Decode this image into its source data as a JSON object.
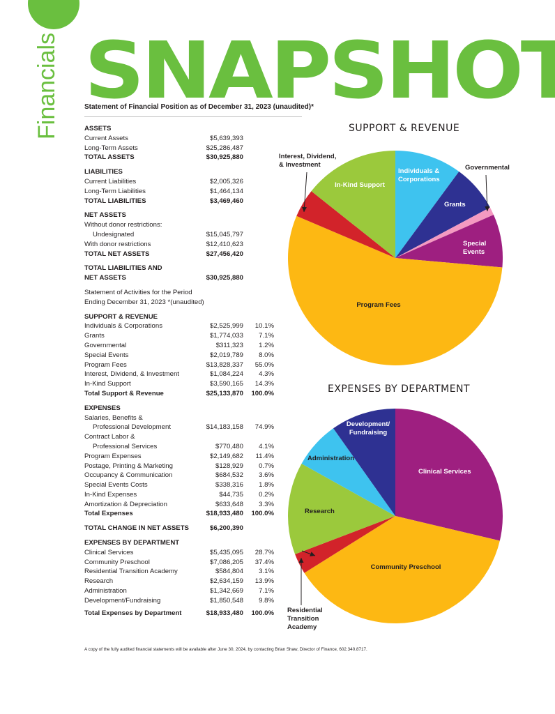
{
  "page": {
    "side_title": "Financials",
    "title": "SNAPSHOT",
    "subtitle": "Statement of Financial Position as of December 31, 2023 (unaudited)*",
    "footnote": "A copy of the fully audited financial statements will be available after June 30, 2024, by contacting Brian Shaw, Director of Finance, 602.340.8717."
  },
  "statement": {
    "assets": {
      "heading": "ASSETS",
      "rows": [
        {
          "label": "Current Assets",
          "value": "$5,639,393"
        },
        {
          "label": "Long-Term Assets",
          "value": "$25,286,487"
        }
      ],
      "total": {
        "label": "TOTAL ASSETS",
        "value": "$30,925,880"
      }
    },
    "liabilities": {
      "heading": "LIABILITIES",
      "rows": [
        {
          "label": "Current Liabilities",
          "value": "$2,005,326"
        },
        {
          "label": "Long-Term Liabilities",
          "value": "$1,464,134"
        }
      ],
      "total": {
        "label": "TOTAL LIABILITIES",
        "value": "$3,469,460"
      }
    },
    "net_assets": {
      "heading": "NET ASSETS",
      "without_label": "Without donor restrictions:",
      "undesignated_label": "Undesignated",
      "undesignated_value": "$15,045,797",
      "with_label": "With donor restrictions",
      "with_value": "$12,410,623",
      "total": {
        "label": "TOTAL NET ASSETS",
        "value": "$27,456,420"
      }
    },
    "total_liab_net": {
      "line1": "TOTAL LIABILITIES AND",
      "line2": "NET ASSETS",
      "value": "$30,925,880"
    },
    "activities": {
      "line1": "Statement of Activities for the Period",
      "line2": "Ending December 31, 2023 *(unaudited)"
    },
    "support": {
      "heading": "SUPPORT & REVENUE",
      "rows": [
        {
          "label": "Individuals & Corporations",
          "value": "$2,525,999",
          "pct": "10.1%"
        },
        {
          "label": "Grants",
          "value": "$1,774,033",
          "pct": "7.1%"
        },
        {
          "label": "Governmental",
          "value": "$311,323",
          "pct": "1.2%"
        },
        {
          "label": "Special Events",
          "value": "$2,019,789",
          "pct": "8.0%"
        },
        {
          "label": "Program Fees",
          "value": "$13,828,337",
          "pct": "55.0%"
        },
        {
          "label": "Interest, Dividend, & Investment",
          "value": "$1,084,224",
          "pct": "4.3%"
        },
        {
          "label": "In-Kind Support",
          "value": "$3,590,165",
          "pct": "14.3%"
        }
      ],
      "total": {
        "label": "Total Support & Revenue",
        "value": "$25,133,870",
        "pct": "100.0%"
      }
    },
    "expenses": {
      "heading": "EXPENSES",
      "salaries_l1": "Salaries, Benefits &",
      "salaries_l2": "Professional Development",
      "salaries_value": "$14,183,158",
      "salaries_pct": "74.9%",
      "contract_l1": "Contract Labor &",
      "contract_l2": "Professional Services",
      "contract_value": "$770,480",
      "contract_pct": "4.1%",
      "rows": [
        {
          "label": "Program Expenses",
          "value": "$2,149,682",
          "pct": "11.4%"
        },
        {
          "label": "Postage, Printing & Marketing",
          "value": "$128,929",
          "pct": "0.7%"
        },
        {
          "label": "Occupancy & Communication",
          "value": "$684,532",
          "pct": "3.6%"
        },
        {
          "label": "Special Events Costs",
          "value": "$338,316",
          "pct": "1.8%"
        },
        {
          "label": "In-Kind Expenses",
          "value": "$44,735",
          "pct": "0.2%"
        },
        {
          "label": "Amortization & Depreciation",
          "value": "$633,648",
          "pct": "3.3%"
        }
      ],
      "total": {
        "label": "Total Expenses",
        "value": "$18,933,480",
        "pct": "100.0%"
      }
    },
    "change": {
      "label": "TOTAL CHANGE IN NET ASSETS",
      "value": "$6,200,390"
    },
    "departments": {
      "heading": "EXPENSES BY DEPARTMENT",
      "rows": [
        {
          "label": "Clinical Services",
          "value": "$5,435,095",
          "pct": "28.7%"
        },
        {
          "label": "Community Preschool",
          "value": "$7,086,205",
          "pct": "37.4%"
        },
        {
          "label": "Residential Transition Academy",
          "value": "$584,804",
          "pct": "3.1%"
        },
        {
          "label": "Research",
          "value": "$2,634,159",
          "pct": "13.9%"
        },
        {
          "label": "Administration",
          "value": "$1,342,669",
          "pct": "7.1%"
        },
        {
          "label": "Development/Fundraising",
          "value": "$1,850,548",
          "pct": "9.8%"
        }
      ],
      "total": {
        "label": "Total Expenses by Department",
        "value": "$18,933,480",
        "pct": "100.0%"
      }
    }
  },
  "chart_data": [
    {
      "type": "pie",
      "title": "SUPPORT & REVENUE",
      "slices": [
        {
          "name": "Individuals & Corporations",
          "value": 10.1,
          "color": "#3ec3ef",
          "label_lines": [
            "Individuals &",
            "Corporations"
          ]
        },
        {
          "name": "Grants",
          "value": 7.1,
          "color": "#2e3192",
          "label_lines": [
            "Grants"
          ]
        },
        {
          "name": "Governmental",
          "value": 1.2,
          "color": "#f49ac1",
          "label_lines": [
            "Governmental"
          ]
        },
        {
          "name": "Special Events",
          "value": 8.0,
          "color": "#9e1f80",
          "label_lines": [
            "Special",
            "Events"
          ]
        },
        {
          "name": "Program Fees",
          "value": 55.0,
          "color": "#fdb813",
          "label_lines": [
            "Program Fees"
          ]
        },
        {
          "name": "Interest, Dividend, & Investment",
          "value": 4.3,
          "color": "#d2232a",
          "label_lines": [
            "Interest, Dividend,",
            "& Investment"
          ]
        },
        {
          "name": "In-Kind Support",
          "value": 14.3,
          "color": "#9bc93c",
          "label_lines": [
            "In-Kind Support"
          ]
        }
      ]
    },
    {
      "type": "pie",
      "title": "EXPENSES BY DEPARTMENT",
      "slices": [
        {
          "name": "Clinical Services",
          "value": 28.7,
          "color": "#9e1f80",
          "label_lines": [
            "Clinical Services"
          ]
        },
        {
          "name": "Community Preschool",
          "value": 37.4,
          "color": "#fdb813",
          "label_lines": [
            "Community Preschool"
          ]
        },
        {
          "name": "Residential Transition Academy",
          "value": 3.1,
          "color": "#d2232a",
          "label_lines": [
            "Residential",
            "Transition",
            "Academy"
          ]
        },
        {
          "name": "Research",
          "value": 13.9,
          "color": "#9bc93c",
          "label_lines": [
            "Research"
          ]
        },
        {
          "name": "Administration",
          "value": 7.1,
          "color": "#3ec3ef",
          "label_lines": [
            "Administration"
          ]
        },
        {
          "name": "Development/Fundraising",
          "value": 9.8,
          "color": "#2e3192",
          "label_lines": [
            "Development/",
            "Fundraising"
          ]
        }
      ]
    }
  ]
}
